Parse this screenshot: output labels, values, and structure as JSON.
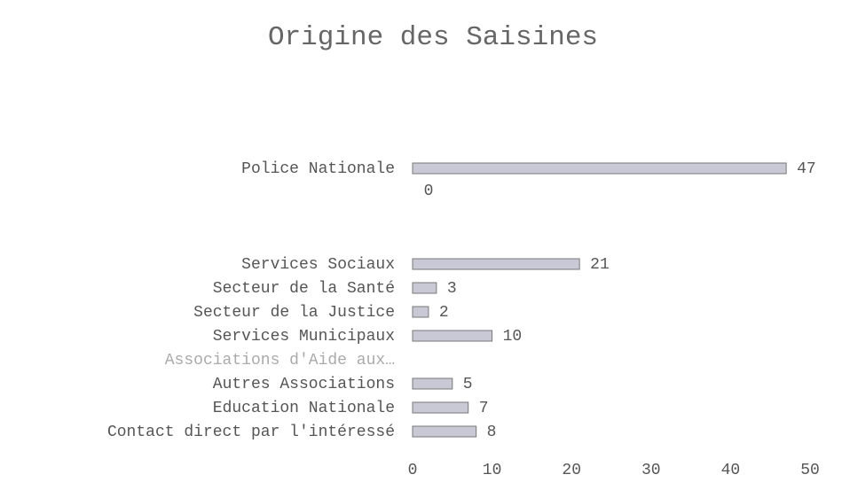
{
  "chart_data": {
    "type": "bar",
    "orientation": "horizontal",
    "title": "Origine des Saisines",
    "categories": [
      "Police Nationale",
      null,
      null,
      null,
      "Services Sociaux",
      "Secteur de la Santé",
      "Secteur de la Justice",
      "Services Municipaux",
      "Associations d'Aide aux…",
      "Autres Associations",
      "Education Nationale",
      "Contact direct par l'intéressé"
    ],
    "values": [
      47,
      0,
      null,
      null,
      21,
      3,
      2,
      10,
      null,
      5,
      7,
      8
    ],
    "color": "#c9c9d6",
    "xlim": [
      0,
      50
    ],
    "xticks": [
      0,
      10,
      20,
      30,
      40,
      50
    ],
    "grid": false
  }
}
